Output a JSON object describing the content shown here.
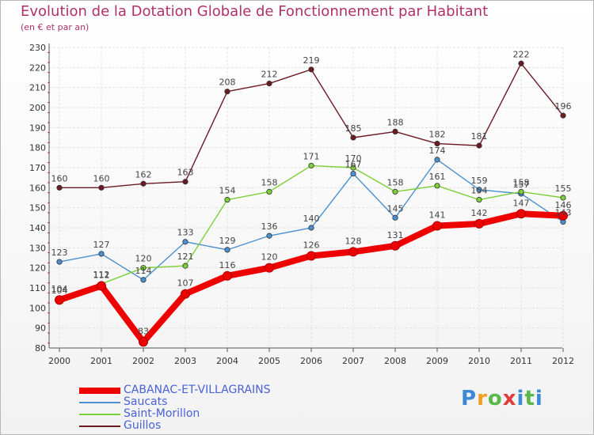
{
  "title": "Evolution de la Dotation Globale de Fonctionnement par Habitant",
  "subtitle": "(en € et par an)",
  "logo": "Proxiti",
  "chart_data": {
    "type": "line",
    "title": "Evolution de la Dotation Globale de Fonctionnement par Habitant",
    "ylabel": "(en € et par an)",
    "xlabel": "",
    "ylim": [
      80,
      230
    ],
    "yticks": [
      80,
      90,
      100,
      110,
      120,
      130,
      140,
      150,
      160,
      170,
      180,
      190,
      200,
      210,
      220,
      230
    ],
    "x": [
      "2000",
      "2001",
      "2002",
      "2003",
      "2004",
      "2005",
      "2006",
      "2007",
      "2008",
      "2009",
      "2010",
      "2011",
      "2012"
    ],
    "grid": true,
    "legend_position": "bottom-left",
    "series": [
      {
        "name": "Guillos",
        "color": "#6b1a24",
        "values": [
          160,
          160,
          162,
          163,
          208,
          212,
          219,
          185,
          188,
          182,
          181,
          222,
          196
        ]
      },
      {
        "name": "Saucats",
        "color": "#4a90d0",
        "values": [
          123,
          127,
          114,
          133,
          129,
          136,
          140,
          167,
          145,
          174,
          159,
          157,
          143
        ]
      },
      {
        "name": "Saint-Morillon",
        "color": "#7ed03a",
        "values": [
          104,
          112,
          120,
          121,
          154,
          158,
          171,
          170,
          158,
          161,
          154,
          158,
          155
        ]
      },
      {
        "name": "CABANAC-ET-VILLAGRAINS",
        "color": "#ee0000",
        "values": [
          104,
          111,
          83,
          107,
          116,
          120,
          126,
          128,
          131,
          141,
          142,
          147,
          146
        ]
      }
    ]
  }
}
